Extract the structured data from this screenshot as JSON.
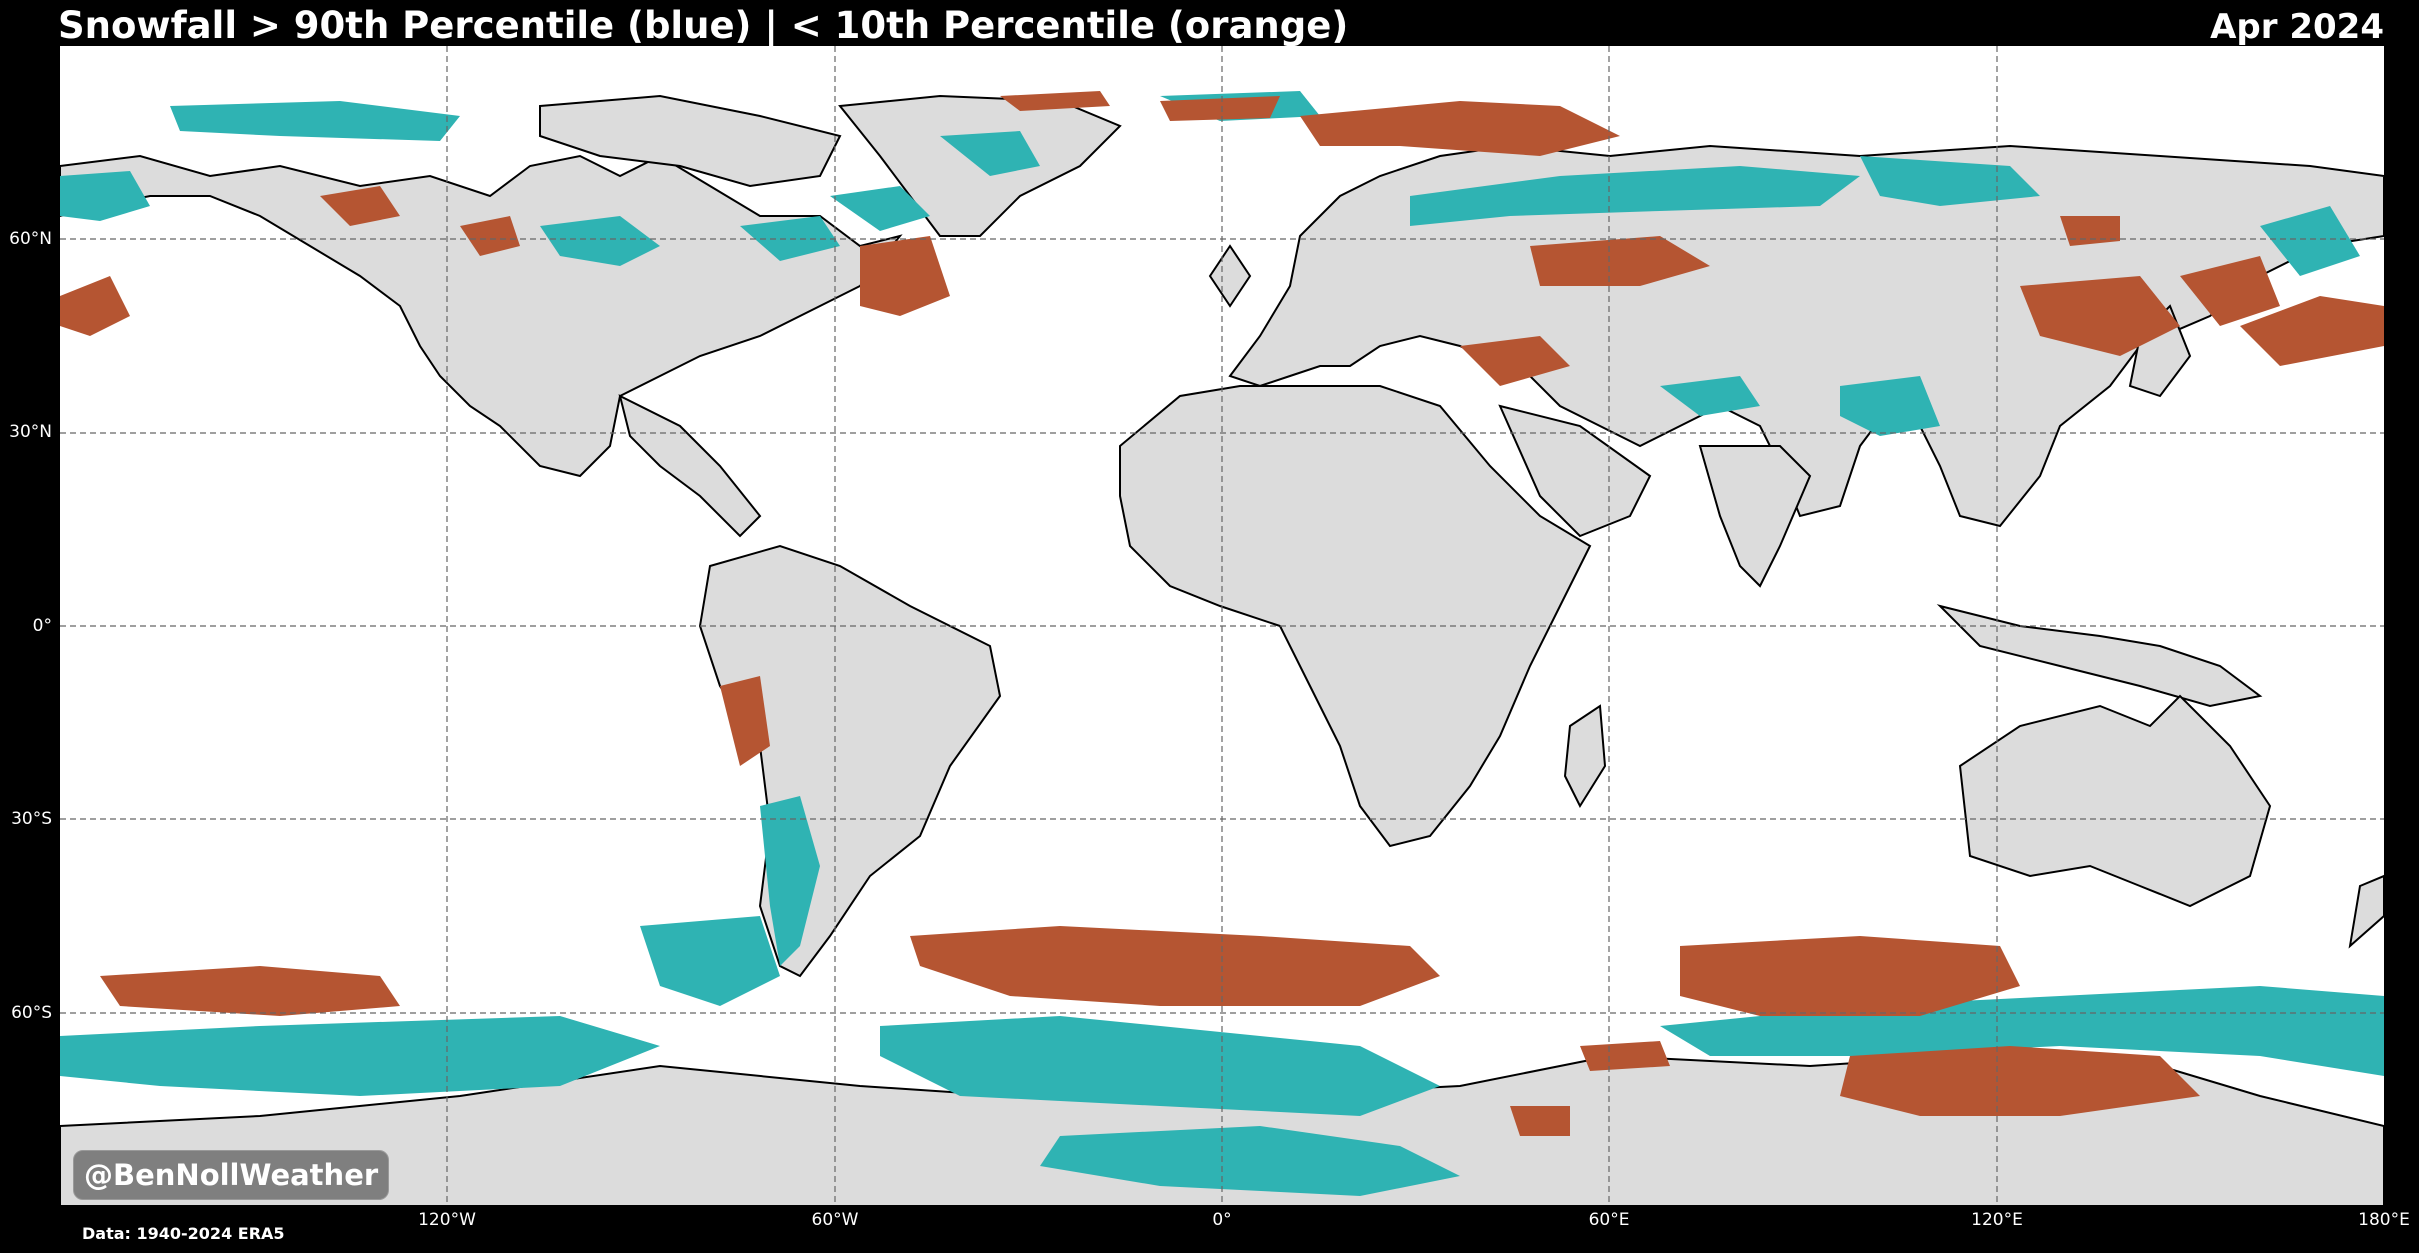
{
  "header": {
    "title": "Snowfall > 90th Percentile (blue) | < 10th Percentile (orange)",
    "date": "Apr 2024"
  },
  "map": {
    "projection": "plate carree",
    "extent": "global (180°W–180°E, 90°S–90°N)",
    "colors": {
      "ocean": "#ffffff",
      "land": "#dcdcdc",
      "above_90th": "#2fb3b3",
      "below_10th": "#b55532",
      "coastline": "#000000",
      "gridline": "#666666"
    },
    "lat_labels": [
      "60°N",
      "30°N",
      "0°",
      "30°S",
      "60°S"
    ],
    "lon_labels": [
      "120°W",
      "60°W",
      "0°",
      "60°E",
      "120°E",
      "180°E"
    ]
  },
  "watermark": "@BenNollWeather",
  "source": "Data: 1940-2024 ERA5"
}
